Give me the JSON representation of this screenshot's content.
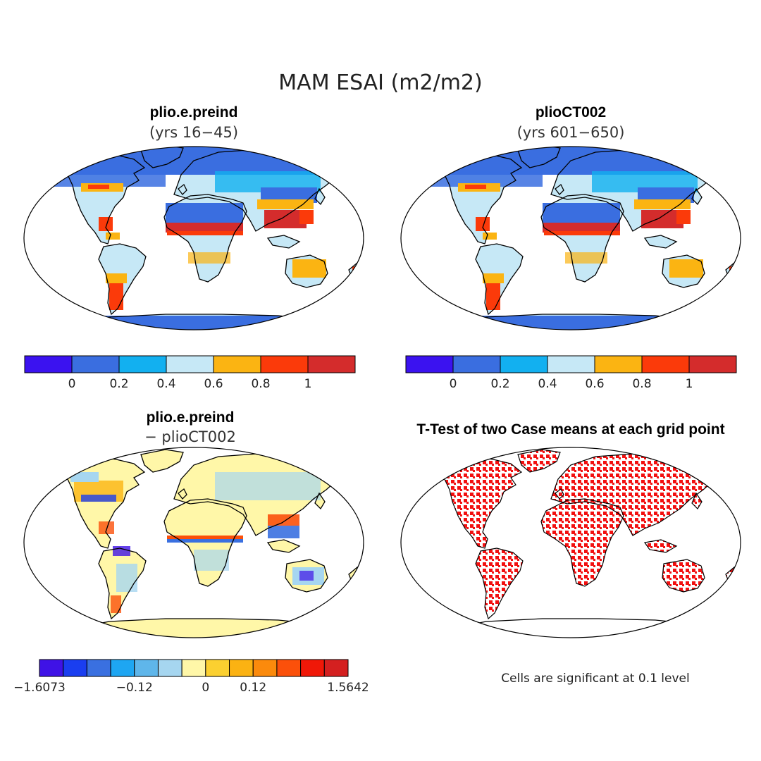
{
  "figure": {
    "title": "MAM ESAI (m2/m2)",
    "note": "Cells are significant at 0.1 level"
  },
  "panels": [
    {
      "id": "preind",
      "title": "plio.e.preind",
      "subtitle": "(yrs 16−45)"
    },
    {
      "id": "ct002",
      "title": "plioCT002",
      "subtitle": "(yrs 601−650)"
    },
    {
      "id": "diff",
      "title": "plio.e.preind",
      "subtitle": "− plioCT002"
    },
    {
      "id": "ttest",
      "title": "T-Test of two Case means at each grid point",
      "subtitle": ""
    }
  ],
  "colorbars": {
    "esai": {
      "colors": [
        "#3b12f0",
        "#3a6ee0",
        "#12b0f0",
        "#c6e8f6",
        "#fbb412",
        "#fb3a0a",
        "#d42c2c"
      ],
      "ticks": [
        "0",
        "0.2",
        "0.4",
        "0.6",
        "0.8",
        "1"
      ]
    },
    "diff": {
      "colors": [
        "#3f12e6",
        "#1a3ef0",
        "#3a70e0",
        "#1ea6f2",
        "#5fb6ea",
        "#a6d6f0",
        "#fff7a8",
        "#fbd030",
        "#fbb212",
        "#fb8a0c",
        "#fb500a",
        "#f01808",
        "#d42020"
      ],
      "ticks": [
        "−1.6073",
        "−0.12",
        "0",
        "0.12",
        "1.5642"
      ]
    }
  },
  "colors": {
    "ocean": "#ffffff",
    "coast": "#000000",
    "antarctica": "#3a6ee0",
    "diff_background": "#fff7a8",
    "significant": "#f21010"
  }
}
